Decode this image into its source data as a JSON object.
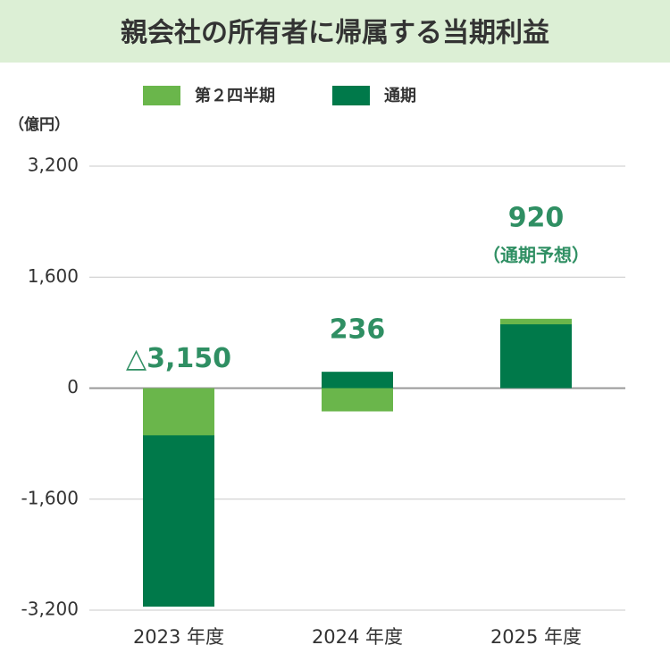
{
  "chart_data": {
    "type": "bar",
    "title": "親会社の所有者に帰属する当期利益",
    "y_unit": "（億円）",
    "categories": [
      "2023 年度",
      "2024 年度",
      "2025 年度"
    ],
    "series": [
      {
        "name": "第２四半期",
        "color": "#6ab64b",
        "values": [
          -680,
          -335,
          1000
        ]
      },
      {
        "name": "通期",
        "color": "#00794a",
        "values": [
          -3150,
          236,
          920
        ],
        "value_labels": [
          "△3,150",
          "236",
          "920"
        ]
      }
    ],
    "annotation": "（通期予想）",
    "ylim": [
      -3200,
      3200
    ],
    "yticks": [
      {
        "value": -3200,
        "label": "-3,200"
      },
      {
        "value": -1600,
        "label": "-1,600"
      },
      0,
      {
        "value": 1600,
        "label": "1,600"
      },
      {
        "value": 3200,
        "label": "3,200"
      }
    ],
    "grid": true
  }
}
